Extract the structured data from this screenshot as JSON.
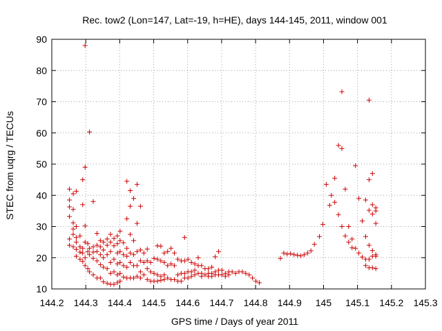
{
  "chart_data": {
    "type": "scatter",
    "title": "Rec. tow2 (Lon=147, Lat=-19, h=HE), days 144-145, 2011, window 001",
    "xlabel": "GPS time / Days of year 2011",
    "ylabel": "STEC from uqrg / TECUs",
    "xlim": [
      144.2,
      145.3
    ],
    "ylim": [
      10,
      90
    ],
    "xticks": [
      "144.2",
      "144.3",
      "144.4",
      "144.5",
      "144.6",
      "144.7",
      "144.8",
      "144.9",
      "145",
      "145.1",
      "145.2",
      "145.3"
    ],
    "yticks": [
      "10",
      "20",
      "30",
      "40",
      "50",
      "60",
      "70",
      "80",
      "90"
    ],
    "grid": true,
    "marker": "plus",
    "color": "#cc0000",
    "points": [
      [
        144.252,
        42.0
      ],
      [
        144.252,
        38.5
      ],
      [
        144.252,
        36.3
      ],
      [
        144.252,
        33.2
      ],
      [
        144.252,
        26.0
      ],
      [
        144.252,
        24.0
      ],
      [
        144.263,
        40.5
      ],
      [
        144.263,
        35.5
      ],
      [
        144.263,
        31.2
      ],
      [
        144.263,
        29.2
      ],
      [
        144.263,
        27.5
      ],
      [
        144.263,
        23.5
      ],
      [
        144.272,
        41.3
      ],
      [
        144.272,
        30.0
      ],
      [
        144.272,
        26.5
      ],
      [
        144.272,
        25.0
      ],
      [
        144.272,
        22.7
      ],
      [
        144.272,
        20.5
      ],
      [
        144.283,
        27.0
      ],
      [
        144.283,
        23.5
      ],
      [
        144.283,
        21.8
      ],
      [
        144.283,
        19.5
      ],
      [
        144.291,
        45.0
      ],
      [
        144.291,
        37.0
      ],
      [
        144.291,
        23.0
      ],
      [
        144.291,
        21.5
      ],
      [
        144.291,
        18.8
      ],
      [
        144.298,
        88.0
      ],
      [
        144.298,
        49.0
      ],
      [
        144.298,
        30.2
      ],
      [
        144.298,
        25.0
      ],
      [
        144.298,
        20.0
      ],
      [
        144.298,
        17.5
      ],
      [
        144.306,
        24.5
      ],
      [
        144.306,
        22.0
      ],
      [
        144.306,
        16.5
      ],
      [
        144.311,
        60.3
      ],
      [
        144.311,
        23.0
      ],
      [
        144.311,
        21.0
      ],
      [
        144.311,
        15.5
      ],
      [
        144.322,
        38.0
      ],
      [
        144.322,
        23.5
      ],
      [
        144.322,
        21.8
      ],
      [
        144.322,
        19.8
      ],
      [
        144.322,
        14.5
      ],
      [
        144.333,
        27.8
      ],
      [
        144.333,
        24.0
      ],
      [
        144.333,
        22.0
      ],
      [
        144.333,
        19.0
      ],
      [
        144.333,
        13.5
      ],
      [
        144.343,
        25.5
      ],
      [
        144.343,
        23.5
      ],
      [
        144.343,
        21.0
      ],
      [
        144.343,
        17.8
      ],
      [
        144.343,
        13.5
      ],
      [
        144.352,
        25.0
      ],
      [
        144.352,
        22.5
      ],
      [
        144.352,
        20.0
      ],
      [
        144.352,
        17.0
      ],
      [
        144.352,
        12.3
      ],
      [
        144.363,
        26.0
      ],
      [
        144.363,
        24.0
      ],
      [
        144.363,
        21.0
      ],
      [
        144.363,
        16.5
      ],
      [
        144.363,
        11.8
      ],
      [
        144.373,
        27.5
      ],
      [
        144.373,
        25.0
      ],
      [
        144.373,
        22.0
      ],
      [
        144.373,
        18.5
      ],
      [
        144.373,
        15.0
      ],
      [
        144.373,
        11.5
      ],
      [
        144.383,
        26.2
      ],
      [
        144.383,
        23.8
      ],
      [
        144.383,
        19.5
      ],
      [
        144.383,
        15.5
      ],
      [
        144.383,
        11.5
      ],
      [
        144.393,
        27.0
      ],
      [
        144.393,
        24.5
      ],
      [
        144.393,
        21.5
      ],
      [
        144.393,
        18.0
      ],
      [
        144.393,
        14.5
      ],
      [
        144.393,
        12.0
      ],
      [
        144.401,
        28.5
      ],
      [
        144.401,
        25.5
      ],
      [
        144.401,
        22.0
      ],
      [
        144.401,
        18.5
      ],
      [
        144.401,
        15.0
      ],
      [
        144.401,
        12.5
      ],
      [
        144.411,
        24.8
      ],
      [
        144.411,
        21.0
      ],
      [
        144.411,
        17.5
      ],
      [
        144.411,
        13.8
      ],
      [
        144.421,
        44.5
      ],
      [
        144.421,
        32.5
      ],
      [
        144.421,
        23.0
      ],
      [
        144.421,
        20.5
      ],
      [
        144.421,
        17.0
      ],
      [
        144.421,
        13.5
      ],
      [
        144.431,
        41.5
      ],
      [
        144.431,
        36.5
      ],
      [
        144.431,
        27.5
      ],
      [
        144.431,
        21.5
      ],
      [
        144.431,
        18.5
      ],
      [
        144.431,
        13.5
      ],
      [
        144.441,
        39.0
      ],
      [
        144.441,
        25.5
      ],
      [
        144.441,
        21.0
      ],
      [
        144.441,
        17.5
      ],
      [
        144.441,
        13.5
      ],
      [
        144.451,
        43.5
      ],
      [
        144.451,
        31.0
      ],
      [
        144.451,
        22.0
      ],
      [
        144.451,
        17.5
      ],
      [
        144.451,
        14.0
      ],
      [
        144.461,
        36.5
      ],
      [
        144.461,
        22.5
      ],
      [
        144.461,
        19.0
      ],
      [
        144.461,
        15.5
      ],
      [
        144.461,
        13.5
      ],
      [
        144.471,
        21.5
      ],
      [
        144.471,
        18.5
      ],
      [
        144.471,
        14.5
      ],
      [
        144.481,
        22.8
      ],
      [
        144.481,
        19.0
      ],
      [
        144.481,
        16.5
      ],
      [
        144.481,
        13.0
      ],
      [
        144.491,
        18.5
      ],
      [
        144.491,
        15.5
      ],
      [
        144.491,
        12.5
      ],
      [
        144.501,
        19.8
      ],
      [
        144.501,
        15.0
      ],
      [
        144.501,
        12.5
      ],
      [
        144.511,
        23.8
      ],
      [
        144.511,
        19.5
      ],
      [
        144.511,
        14.5
      ],
      [
        144.511,
        12.5
      ],
      [
        144.521,
        23.7
      ],
      [
        144.521,
        19.0
      ],
      [
        144.521,
        14.0
      ],
      [
        144.521,
        12.8
      ],
      [
        144.531,
        21.5
      ],
      [
        144.531,
        18.5
      ],
      [
        144.531,
        14.5
      ],
      [
        144.531,
        13.0
      ],
      [
        144.541,
        22.0
      ],
      [
        144.541,
        17.5
      ],
      [
        144.541,
        13.5
      ],
      [
        144.551,
        23.0
      ],
      [
        144.551,
        18.0
      ],
      [
        144.551,
        13.0
      ],
      [
        144.561,
        21.5
      ],
      [
        144.561,
        17.5
      ],
      [
        144.561,
        13.0
      ],
      [
        144.571,
        19.5
      ],
      [
        144.571,
        14.5
      ],
      [
        144.571,
        12.5
      ],
      [
        144.581,
        19.0
      ],
      [
        144.581,
        15.0
      ],
      [
        144.581,
        12.5
      ],
      [
        144.591,
        26.5
      ],
      [
        144.591,
        19.0
      ],
      [
        144.591,
        15.0
      ],
      [
        144.591,
        13.5
      ],
      [
        144.601,
        19.5
      ],
      [
        144.601,
        15.5
      ],
      [
        144.601,
        13.5
      ],
      [
        144.611,
        18.5
      ],
      [
        144.611,
        15.5
      ],
      [
        144.611,
        14.0
      ],
      [
        144.621,
        18.0
      ],
      [
        144.621,
        16.0
      ],
      [
        144.621,
        14.5
      ],
      [
        144.631,
        20.0
      ],
      [
        144.631,
        17.5
      ],
      [
        144.631,
        15.0
      ],
      [
        144.641,
        17.5
      ],
      [
        144.641,
        15.0
      ],
      [
        144.641,
        14.0
      ],
      [
        144.651,
        16.5
      ],
      [
        144.651,
        14.5
      ],
      [
        144.661,
        16.5
      ],
      [
        144.661,
        15.0
      ],
      [
        144.661,
        14.0
      ],
      [
        144.671,
        17.0
      ],
      [
        144.671,
        15.0
      ],
      [
        144.671,
        14.0
      ],
      [
        144.681,
        20.3
      ],
      [
        144.681,
        15.5
      ],
      [
        144.681,
        14.5
      ],
      [
        144.691,
        22.0
      ],
      [
        144.691,
        16.0
      ],
      [
        144.691,
        14.5
      ],
      [
        144.701,
        16.0
      ],
      [
        144.701,
        14.5
      ],
      [
        144.711,
        15.0
      ],
      [
        144.711,
        14.0
      ],
      [
        144.721,
        14.5
      ],
      [
        144.721,
        15.5
      ],
      [
        144.731,
        15.5
      ],
      [
        144.741,
        15.0
      ],
      [
        144.751,
        15.5
      ],
      [
        144.761,
        15.5
      ],
      [
        144.771,
        15.0
      ],
      [
        144.781,
        14.5
      ],
      [
        144.791,
        13.5
      ],
      [
        144.801,
        12.5
      ],
      [
        144.811,
        12.0
      ],
      [
        144.873,
        19.8
      ],
      [
        144.883,
        21.5
      ],
      [
        144.893,
        21.2
      ],
      [
        144.903,
        21.3
      ],
      [
        144.913,
        21.0
      ],
      [
        144.923,
        20.8
      ],
      [
        144.933,
        20.6
      ],
      [
        144.943,
        21.0
      ],
      [
        144.953,
        21.5
      ],
      [
        144.963,
        22.2
      ],
      [
        144.973,
        24.3
      ],
      [
        144.988,
        26.8
      ],
      [
        144.998,
        30.7
      ],
      [
        145.008,
        43.5
      ],
      [
        145.018,
        36.8
      ],
      [
        145.023,
        40.0
      ],
      [
        145.033,
        45.5
      ],
      [
        145.033,
        37.8
      ],
      [
        145.044,
        56.0
      ],
      [
        145.044,
        33.8
      ],
      [
        145.054,
        73.2
      ],
      [
        145.054,
        55.0
      ],
      [
        145.054,
        30.0
      ],
      [
        145.064,
        42.0
      ],
      [
        145.064,
        27.0
      ],
      [
        145.074,
        30.0
      ],
      [
        145.074,
        25.0
      ],
      [
        145.084,
        26.0
      ],
      [
        145.084,
        23.2
      ],
      [
        145.094,
        49.5
      ],
      [
        145.094,
        23.0
      ],
      [
        145.104,
        39.0
      ],
      [
        145.104,
        21.5
      ],
      [
        145.114,
        31.8
      ],
      [
        145.114,
        20.2
      ],
      [
        145.124,
        38.5
      ],
      [
        145.124,
        26.8
      ],
      [
        145.124,
        19.5
      ],
      [
        145.124,
        17.5
      ],
      [
        145.134,
        70.5
      ],
      [
        145.134,
        45.0
      ],
      [
        145.134,
        35.2
      ],
      [
        145.134,
        24.0
      ],
      [
        145.134,
        19.5
      ],
      [
        145.134,
        16.8
      ],
      [
        145.144,
        47.0
      ],
      [
        145.144,
        37.0
      ],
      [
        145.144,
        34.0
      ],
      [
        145.144,
        22.3
      ],
      [
        145.144,
        20.5
      ],
      [
        145.144,
        16.8
      ],
      [
        145.154,
        36.0
      ],
      [
        145.154,
        35.0
      ],
      [
        145.154,
        31.0
      ],
      [
        145.154,
        21.0
      ],
      [
        145.154,
        20.5
      ],
      [
        145.154,
        16.5
      ]
    ]
  }
}
